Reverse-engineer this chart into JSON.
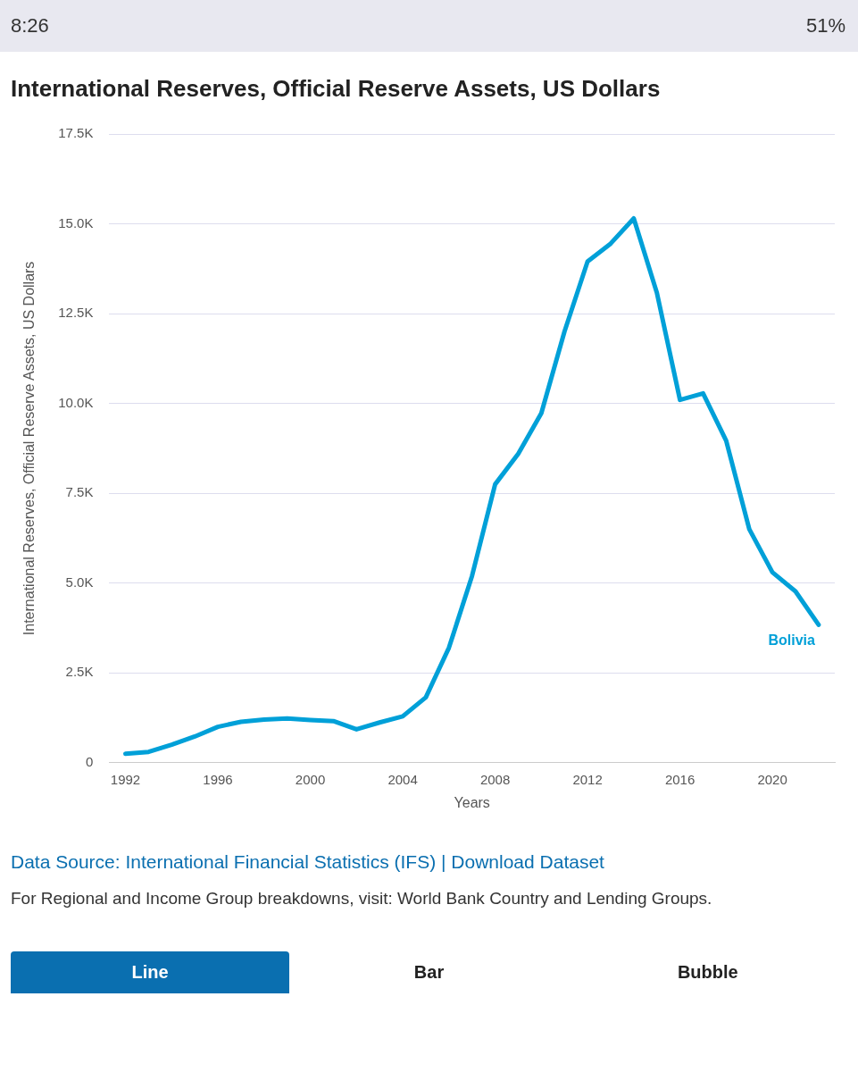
{
  "chart_data": {
    "type": "line",
    "title": "International Reserves, Official Reserve Assets, US Dollars",
    "xlabel": "Years",
    "ylabel": "International Reserves, Official Reserve Assets, US Dollars",
    "x": [
      1992,
      1993,
      1994,
      1995,
      1996,
      1997,
      1998,
      1999,
      2000,
      2001,
      2002,
      2003,
      2004,
      2005,
      2006,
      2007,
      2008,
      2009,
      2010,
      2011,
      2012,
      2013,
      2014,
      2015,
      2016,
      2017,
      2018,
      2019,
      2020,
      2021,
      2022
    ],
    "series": [
      {
        "name": "Bolivia",
        "color": "#00a0d8",
        "values": [
          250,
          300,
          500,
          730,
          1000,
          1140,
          1200,
          1230,
          1190,
          1160,
          930,
          1120,
          1290,
          1820,
          3200,
          5200,
          7750,
          8600,
          9730,
          12000,
          13950,
          14450,
          15150,
          13080,
          10100,
          10280,
          8960,
          6500,
          5300,
          4770,
          3840
        ]
      }
    ],
    "xlim": [
      1991.3,
      2022.7
    ],
    "xticks": [
      1992,
      1996,
      2000,
      2004,
      2008,
      2012,
      2016,
      2020
    ],
    "ylim": [
      0,
      17500
    ],
    "yticks": [
      0,
      {
        "value": 2500,
        "label": "2.5K"
      },
      {
        "value": 5000,
        "label": "5.0K"
      },
      {
        "value": 7500,
        "label": "7.5K"
      },
      {
        "value": 10000,
        "label": "10.0K"
      },
      {
        "value": 12500,
        "label": "12.5K"
      },
      {
        "value": 15000,
        "label": "15.0K"
      },
      {
        "value": 17500,
        "label": "17.5K"
      }
    ],
    "grid": "y",
    "legend": false,
    "marker": "none",
    "line_style": "solid",
    "annotations": [
      "8:26",
      "51%",
      "Data Source: International Financial Statistics (IFS) | Download Dataset",
      "For Regional and Income Group breakdowns, visit:  World Bank Country and Lending Groups.",
      "Line",
      "Bar",
      "Bubble"
    ]
  }
}
